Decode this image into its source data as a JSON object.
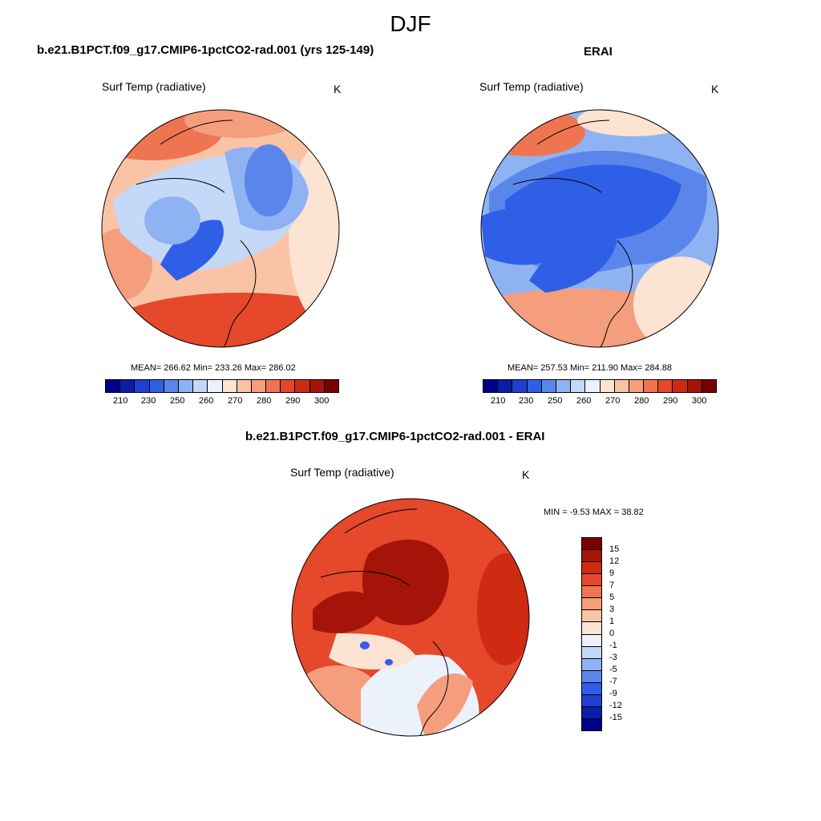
{
  "title": "DJF",
  "left_panel": {
    "case": "b.e21.B1PCT.f09_g17.CMIP6-1pctCO2-rad.001 (yrs 125-149)",
    "variable": "Surf Temp (radiative)",
    "units": "K",
    "stats": "MEAN= 266.62  Min= 233.26  Max= 286.02"
  },
  "right_panel": {
    "case": "ERAI",
    "variable": "Surf Temp (radiative)",
    "units": "K",
    "stats": "MEAN= 257.53  Min= 211.90  Max= 284.88"
  },
  "diff_panel": {
    "case": "b.e21.B1PCT.f09_g17.CMIP6-1pctCO2-rad.001 - ERAI",
    "variable": "Surf Temp (radiative)",
    "units": "K",
    "stats": "MIN =  -9.53 MAX =  38.82"
  },
  "abs_colorbar": {
    "tick_labels": [
      "210",
      "230",
      "250",
      "260",
      "270",
      "280",
      "290",
      "300"
    ],
    "colors": [
      "#00008b",
      "#0a1ea8",
      "#1f3fd4",
      "#2f5fe6",
      "#5a86ec",
      "#8fb2f2",
      "#c4d8f8",
      "#ecf2fc",
      "#fde3d2",
      "#f9c3a6",
      "#f59e7d",
      "#ef7552",
      "#e5482a",
      "#cf2a12",
      "#a51408",
      "#7a0000"
    ]
  },
  "diff_colorbar": {
    "tick_labels": [
      "15",
      "12",
      "9",
      "7",
      "5",
      "3",
      "1",
      "0",
      "-1",
      "-3",
      "-5",
      "-7",
      "-9",
      "-12",
      "-15"
    ],
    "colors": [
      "#7a0000",
      "#a51408",
      "#cf2a12",
      "#e5482a",
      "#ef7552",
      "#f59e7d",
      "#f9c3a6",
      "#fde3d2",
      "#ecf2fc",
      "#c4d8f8",
      "#8fb2f2",
      "#5a86ec",
      "#2f5fe6",
      "#1f3fd4",
      "#0a1ea8",
      "#00008b"
    ]
  }
}
